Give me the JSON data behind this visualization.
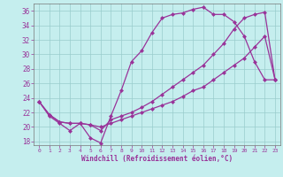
{
  "xlabel": "Windchill (Refroidissement éolien,°C)",
  "bg_color": "#c5eeee",
  "line_color": "#993399",
  "grid_color": "#99cccc",
  "xlim": [
    -0.5,
    23.5
  ],
  "ylim": [
    17.5,
    37.0
  ],
  "xticks": [
    0,
    1,
    2,
    3,
    4,
    5,
    6,
    7,
    8,
    9,
    10,
    11,
    12,
    13,
    14,
    15,
    16,
    17,
    18,
    19,
    20,
    21,
    22,
    23
  ],
  "yticks": [
    18,
    20,
    22,
    24,
    26,
    28,
    30,
    32,
    34,
    36
  ],
  "line1_x": [
    0,
    1,
    2,
    3,
    4,
    5,
    6,
    7,
    8,
    9,
    10,
    11,
    12,
    13,
    14,
    15,
    16,
    17,
    18,
    19,
    20,
    21,
    22,
    23
  ],
  "line1_y": [
    23.5,
    21.5,
    20.5,
    19.5,
    20.5,
    18.5,
    17.8,
    21.5,
    25.0,
    29.0,
    30.5,
    33.0,
    35.0,
    35.5,
    35.7,
    36.2,
    36.5,
    35.5,
    35.5,
    34.5,
    32.5,
    29.0,
    26.5,
    26.5
  ],
  "line2_x": [
    0,
    1,
    2,
    3,
    4,
    5,
    6,
    7,
    8,
    9,
    10,
    11,
    12,
    13,
    14,
    15,
    16,
    17,
    18,
    19,
    20,
    21,
    22,
    23
  ],
  "line2_y": [
    23.5,
    21.7,
    20.7,
    20.5,
    20.5,
    20.3,
    19.5,
    21.0,
    21.5,
    22.0,
    22.7,
    23.5,
    24.5,
    25.5,
    26.5,
    27.5,
    28.5,
    30.0,
    31.5,
    33.5,
    35.0,
    35.5,
    35.8,
    26.5
  ],
  "line3_x": [
    0,
    1,
    2,
    3,
    4,
    5,
    6,
    7,
    8,
    9,
    10,
    11,
    12,
    13,
    14,
    15,
    16,
    17,
    18,
    19,
    20,
    21,
    22,
    23
  ],
  "line3_y": [
    23.5,
    21.7,
    20.7,
    20.5,
    20.5,
    20.3,
    20.0,
    20.5,
    21.0,
    21.5,
    22.0,
    22.5,
    23.0,
    23.5,
    24.2,
    25.0,
    25.5,
    26.5,
    27.5,
    28.5,
    29.5,
    31.0,
    32.5,
    26.5
  ]
}
